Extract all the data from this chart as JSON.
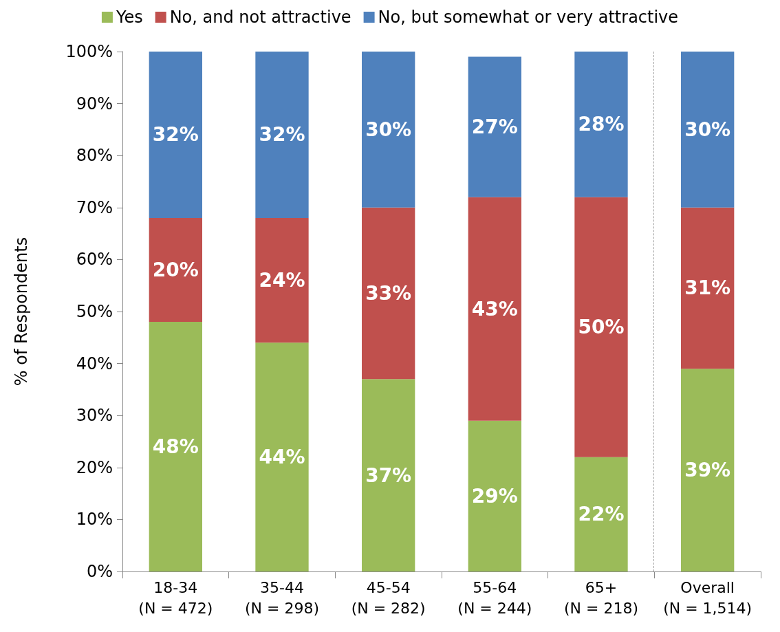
{
  "chart_data": {
    "type": "bar",
    "stacked": true,
    "ylabel": "% of Respondents",
    "categories": [
      "18-34\n(N = 472)",
      "35-44\n(N = 298)",
      "45-54\n(N = 282)",
      "55-64\n(N = 244)",
      "65+\n(N = 218)",
      "Overall\n(N = 1,514)"
    ],
    "series": [
      {
        "name": "Yes",
        "color": "#9bbb59",
        "values": [
          48,
          44,
          37,
          29,
          22,
          39
        ],
        "value_labels": [
          "48%",
          "44%",
          "37%",
          "29%",
          "22%",
          "39%"
        ]
      },
      {
        "name": "No, and not attractive",
        "color": "#c0504d",
        "values": [
          20,
          24,
          33,
          43,
          50,
          31
        ],
        "value_labels": [
          "20%",
          "24%",
          "33%",
          "43%",
          "50%",
          "31%"
        ]
      },
      {
        "name": "No, but somewhat or very attractive",
        "color": "#4f81bd",
        "values": [
          32,
          32,
          30,
          27,
          28,
          30
        ],
        "value_labels": [
          "32%",
          "32%",
          "30%",
          "27%",
          "28%",
          "30%"
        ]
      }
    ],
    "ylim": [
      0,
      100
    ],
    "yticks": [
      {
        "value": 0,
        "label": "0%"
      },
      {
        "value": 10,
        "label": "10%"
      },
      {
        "value": 20,
        "label": "20%"
      },
      {
        "value": 30,
        "label": "30%"
      },
      {
        "value": 40,
        "label": "40%"
      },
      {
        "value": 50,
        "label": "50%"
      },
      {
        "value": 60,
        "label": "60%"
      },
      {
        "value": 70,
        "label": "70%"
      },
      {
        "value": 80,
        "label": "80%"
      },
      {
        "value": 90,
        "label": "90%"
      },
      {
        "value": 100,
        "label": "100%"
      }
    ],
    "grid": false,
    "legend": "top"
  }
}
